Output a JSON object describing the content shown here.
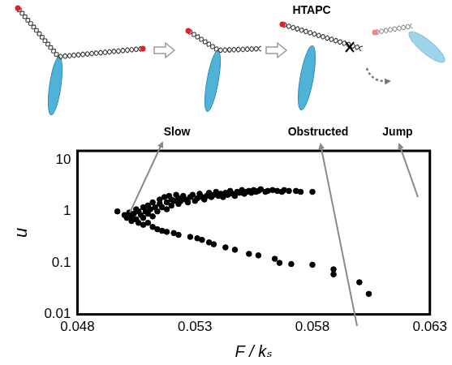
{
  "chart_data": {
    "type": "scatter",
    "x_label": "F / kₛ",
    "y_label": "u",
    "annotations": [
      "Slow",
      "Obstructed",
      "Jump",
      "HTAPC"
    ],
    "x": [
      0.0497,
      0.05,
      0.0501,
      0.0502,
      0.0503,
      0.0504,
      0.0505,
      0.0505,
      0.0506,
      0.0507,
      0.0508,
      0.0508,
      0.0509,
      0.051,
      0.051,
      0.0511,
      0.0512,
      0.0512,
      0.0513,
      0.0514,
      0.0515,
      0.0515,
      0.0516,
      0.0517,
      0.0518,
      0.0518,
      0.0519,
      0.052,
      0.052,
      0.0521,
      0.0522,
      0.0523,
      0.0523,
      0.0524,
      0.0525,
      0.0526,
      0.0527,
      0.0528,
      0.0529,
      0.053,
      0.0531,
      0.0532,
      0.0533,
      0.0534,
      0.0535,
      0.0536,
      0.0537,
      0.0538,
      0.0539,
      0.054,
      0.0541,
      0.0542,
      0.0543,
      0.0544,
      0.0545,
      0.0546,
      0.0547,
      0.0548,
      0.0549,
      0.055,
      0.0551,
      0.0552,
      0.0553,
      0.0554,
      0.0555,
      0.0556,
      0.0557,
      0.0558,
      0.056,
      0.0561,
      0.0563,
      0.0565,
      0.0567,
      0.0568,
      0.057,
      0.0573,
      0.0575,
      0.058,
      0.0503,
      0.0506,
      0.0508,
      0.051,
      0.0512,
      0.0514,
      0.0516,
      0.0518,
      0.0521,
      0.0523,
      0.0528,
      0.0531,
      0.0533,
      0.0536,
      0.0538,
      0.0543,
      0.0547,
      0.0553,
      0.0557,
      0.0564,
      0.0566,
      0.0571,
      0.058,
      0.0589,
      0.0589,
      0.06,
      0.0604
    ],
    "values": [
      1.0,
      0.85,
      0.75,
      0.95,
      0.8,
      0.9,
      1.1,
      0.7,
      1.0,
      0.85,
      1.2,
      0.75,
      1.0,
      1.3,
      0.9,
      1.1,
      1.5,
      0.8,
      1.2,
      1.0,
      1.4,
      1.7,
      1.2,
      1.9,
      1.5,
      1.1,
      2.0,
      1.3,
      1.7,
      1.6,
      2.1,
      1.4,
      1.8,
      1.6,
      2.0,
      1.7,
      1.5,
      1.9,
      2.1,
      1.6,
      1.8,
      2.2,
      1.9,
      1.7,
      2.0,
      2.3,
      1.9,
      2.1,
      2.4,
      2.0,
      2.2,
      1.9,
      2.3,
      2.1,
      2.5,
      2.2,
      2.0,
      2.4,
      2.3,
      2.6,
      2.2,
      2.4,
      2.5,
      2.3,
      2.6,
      2.4,
      2.5,
      2.7,
      2.4,
      2.5,
      2.6,
      2.5,
      2.4,
      2.6,
      2.5,
      2.5,
      2.4,
      2.4,
      0.65,
      0.6,
      0.55,
      0.6,
      0.5,
      0.45,
      0.42,
      0.4,
      0.38,
      0.35,
      0.32,
      0.3,
      0.28,
      0.25,
      0.23,
      0.2,
      0.18,
      0.15,
      0.14,
      0.12,
      0.1,
      0.095,
      0.092,
      0.075,
      0.06,
      0.042,
      0.025
    ],
    "color": "#000000",
    "marker": "circle",
    "xlim": [
      0.048,
      0.063
    ],
    "xticks": [
      0.048,
      0.053,
      0.058,
      0.063
    ],
    "ylim": [
      0.01,
      15
    ],
    "yticks": [
      0.01,
      0.1,
      1,
      10
    ],
    "log": "y",
    "grid": false
  }
}
